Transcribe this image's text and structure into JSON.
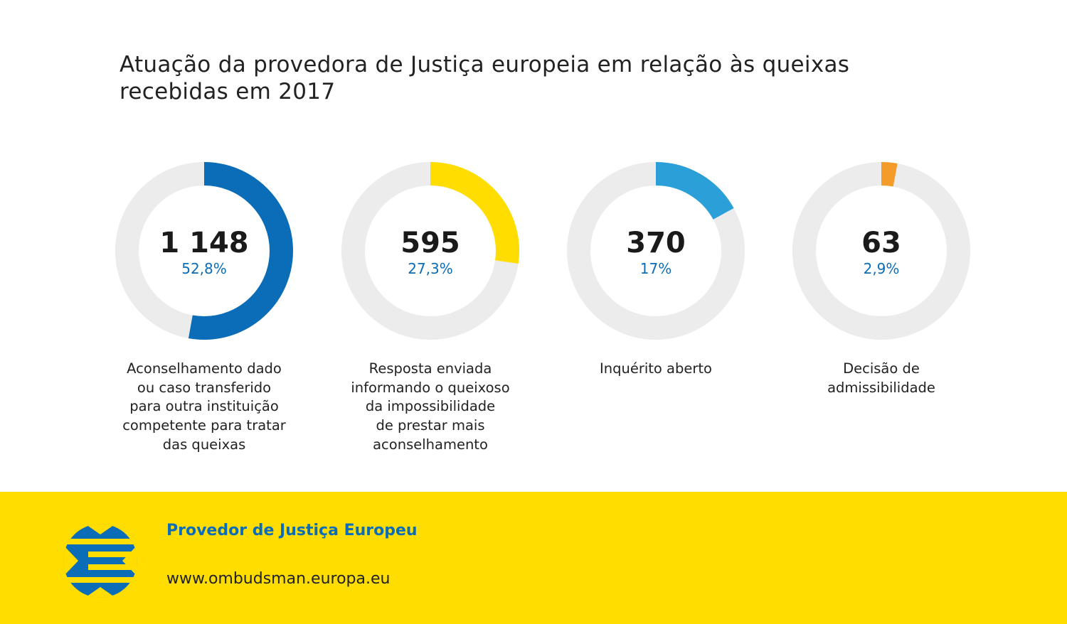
{
  "title_line1": "Atuação da provedora de Justiça europeia em relação às queixas",
  "title_line2": "recebidas em 2017",
  "chart_data": {
    "type": "pie",
    "variant": "donut",
    "categories": [
      "Aconselhamento dado ou caso transferido para outra instituição competente para tratar das queixas",
      "Resposta enviada informando o queixoso da impossibilidade de prestar mais aconselhamento",
      "Inquérito aberto",
      "Decisão de admissibilidade"
    ],
    "items": [
      {
        "value": 1148,
        "value_label": "1 148",
        "percent": 52.8,
        "percent_label": "52,8%",
        "label": "Aconselhamento dado\nou caso transferido\npara outra instituição\ncompetente para tratar\ndas queixas",
        "color": "#0b6db7"
      },
      {
        "value": 595,
        "value_label": "595",
        "percent": 27.3,
        "percent_label": "27,3%",
        "label": "Resposta enviada\ninformando o queixoso\nda impossibilidade\nde prestar mais\naconselhamento",
        "color": "#ffdd00"
      },
      {
        "value": 370,
        "value_label": "370",
        "percent": 17,
        "percent_label": "17%",
        "label": "Inquérito aberto",
        "color": "#2a9fd8"
      },
      {
        "value": 63,
        "value_label": "63",
        "percent": 2.9,
        "percent_label": "2,9%",
        "label": "Decisão de\nadmissibilidade",
        "color": "#f39c2a"
      }
    ],
    "track_color": "#ececec"
  },
  "footer": {
    "org_name": "Provedor de Justiça Europeu",
    "url": "www.ombudsman.europa.eu",
    "logo_color": "#0b6db7",
    "background": "#ffdd00"
  }
}
